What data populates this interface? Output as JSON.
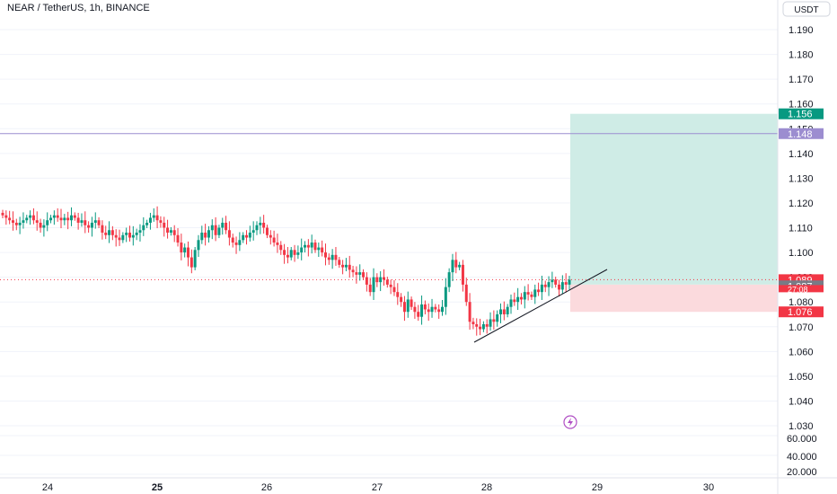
{
  "header": {
    "symbol": "NEAR / TetherUS, 1h, BINANCE"
  },
  "currency_button": {
    "label": "USDT"
  },
  "price_tags": {
    "target": "1.156",
    "line": "1.148",
    "current": "1.089",
    "countdown": "27:08",
    "entry": "1.087",
    "stop": "1.076"
  },
  "colors": {
    "up": "#089981",
    "down": "#f23645",
    "target": "#089981",
    "line": "#9c8dd0",
    "profit_zone": "#cfece6",
    "loss_zone": "#fbdadd",
    "axis_text": "#131722",
    "entry_tag": "#787b86"
  },
  "chart_data": {
    "type": "candlestick",
    "title": "NEAR / TetherUS, 1h, BINANCE",
    "price_axis": {
      "ticks": [
        "1.190",
        "1.180",
        "1.170",
        "1.160",
        "1.150",
        "1.140",
        "1.130",
        "1.120",
        "1.110",
        "1.100",
        "1.090",
        "1.080",
        "1.070",
        "1.060",
        "1.050",
        "1.040",
        "1.030"
      ],
      "range": [
        1.0255,
        1.1985
      ]
    },
    "volume_axis": {
      "ticks": [
        "60.000",
        "40.000",
        "20.000"
      ]
    },
    "time_axis": {
      "ticks": [
        "24",
        "25",
        "26",
        "27",
        "28",
        "29",
        "30"
      ],
      "bold": [
        "25"
      ]
    },
    "candles_close": [
      1.115,
      1.114,
      1.113,
      1.112,
      1.111,
      1.112,
      1.113,
      1.114,
      1.115,
      1.113,
      1.112,
      1.11,
      1.111,
      1.113,
      1.114,
      1.115,
      1.114,
      1.113,
      1.114,
      1.113,
      1.115,
      1.114,
      1.112,
      1.113,
      1.111,
      1.11,
      1.112,
      1.113,
      1.111,
      1.108,
      1.107,
      1.109,
      1.107,
      1.106,
      1.105,
      1.107,
      1.108,
      1.106,
      1.107,
      1.108,
      1.109,
      1.111,
      1.112,
      1.114,
      1.115,
      1.113,
      1.112,
      1.11,
      1.108,
      1.109,
      1.107,
      1.104,
      1.1,
      1.102,
      1.098,
      1.094,
      1.101,
      1.105,
      1.108,
      1.106,
      1.109,
      1.111,
      1.107,
      1.11,
      1.112,
      1.109,
      1.106,
      1.104,
      1.103,
      1.105,
      1.107,
      1.106,
      1.108,
      1.109,
      1.111,
      1.112,
      1.11,
      1.107,
      1.106,
      1.104,
      1.103,
      1.101,
      1.099,
      1.098,
      1.101,
      1.099,
      1.1,
      1.102,
      1.103,
      1.102,
      1.104,
      1.101,
      1.102,
      1.1,
      1.098,
      1.097,
      1.099,
      1.097,
      1.095,
      1.094,
      1.095,
      1.093,
      1.092,
      1.091,
      1.092,
      1.09,
      1.087,
      1.084,
      1.09,
      1.088,
      1.09,
      1.089,
      1.087,
      1.086,
      1.084,
      1.082,
      1.08,
      1.076,
      1.081,
      1.078,
      1.076,
      1.074,
      1.079,
      1.077,
      1.076,
      1.078,
      1.077,
      1.076,
      1.078,
      1.086,
      1.092,
      1.097,
      1.094,
      1.095,
      1.087,
      1.08,
      1.072,
      1.071,
      1.07,
      1.069,
      1.071,
      1.07,
      1.073,
      1.072,
      1.075,
      1.077,
      1.075,
      1.078,
      1.081,
      1.08,
      1.082,
      1.081,
      1.084,
      1.083,
      1.082,
      1.085,
      1.084,
      1.087,
      1.086,
      1.088,
      1.089,
      1.087,
      1.085,
      1.088,
      1.087,
      1.089
    ],
    "profit_zone": {
      "from": 1.087,
      "to": 1.156
    },
    "loss_zone": {
      "from": 1.076,
      "to": 1.087
    },
    "horizontal_line": 1.148,
    "grid": true
  }
}
